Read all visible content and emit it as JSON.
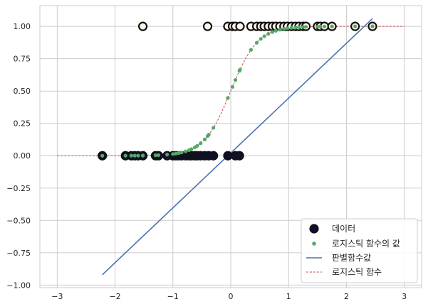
{
  "chart_data": {
    "type": "scatter",
    "title": "",
    "xlabel": "",
    "ylabel": "",
    "xlim": [
      -3.3,
      3.3
    ],
    "ylim": [
      -1.02,
      1.16
    ],
    "grid": true,
    "legend_position": "bottom-right",
    "x_ticks": [
      -3,
      -2,
      -1,
      0,
      1,
      2,
      3
    ],
    "y_ticks": [
      1.0,
      0.75,
      0.5,
      0.25,
      0.0,
      -0.25,
      -0.5,
      -0.75,
      -1.0
    ],
    "series": [
      {
        "name": "데이터",
        "kind": "scatter",
        "color_edge": "#111111",
        "color_fill_0": "#0d1033",
        "color_fill_1": "#fff4e6",
        "points": [
          [
            -2.22,
            0
          ],
          [
            -1.82,
            0
          ],
          [
            -1.72,
            0
          ],
          [
            -1.66,
            0
          ],
          [
            -1.6,
            0
          ],
          [
            -1.52,
            0
          ],
          [
            -1.3,
            0
          ],
          [
            -1.25,
            0
          ],
          [
            -1.1,
            0
          ],
          [
            -1.0,
            0
          ],
          [
            -0.95,
            0
          ],
          [
            -0.9,
            0
          ],
          [
            -0.85,
            0
          ],
          [
            -0.78,
            0
          ],
          [
            -0.72,
            0
          ],
          [
            -0.68,
            0
          ],
          [
            -0.62,
            0
          ],
          [
            -0.58,
            0
          ],
          [
            -0.52,
            0
          ],
          [
            -0.45,
            0
          ],
          [
            -0.38,
            0
          ],
          [
            -0.3,
            0
          ],
          [
            -0.05,
            0
          ],
          [
            0.08,
            0
          ],
          [
            0.15,
            0
          ],
          [
            -1.52,
            1
          ],
          [
            -0.4,
            1
          ],
          [
            -0.05,
            1
          ],
          [
            0.03,
            1
          ],
          [
            0.08,
            1
          ],
          [
            0.16,
            1
          ],
          [
            0.35,
            1
          ],
          [
            0.45,
            1
          ],
          [
            0.52,
            1
          ],
          [
            0.58,
            1
          ],
          [
            0.65,
            1
          ],
          [
            0.72,
            1
          ],
          [
            0.78,
            1
          ],
          [
            0.85,
            1
          ],
          [
            0.92,
            1
          ],
          [
            0.98,
            1
          ],
          [
            1.05,
            1
          ],
          [
            1.12,
            1
          ],
          [
            1.18,
            1
          ],
          [
            1.25,
            1
          ],
          [
            1.3,
            1
          ],
          [
            1.5,
            1
          ],
          [
            1.55,
            1
          ],
          [
            1.62,
            1
          ],
          [
            1.75,
            1
          ],
          [
            2.15,
            1
          ],
          [
            2.45,
            1
          ]
        ]
      },
      {
        "name": "로지스틱 함수의 값",
        "kind": "scatter",
        "color": "#55a868"
      },
      {
        "name": "판별함수값",
        "kind": "line",
        "color": "#4c72b0",
        "points": [
          [
            -2.22,
            -0.92
          ],
          [
            2.45,
            1.06
          ]
        ]
      },
      {
        "name": "로지스틱 함수",
        "kind": "dashed-line",
        "color": "#c44e52",
        "x_range": [
          -3,
          3
        ]
      }
    ]
  }
}
